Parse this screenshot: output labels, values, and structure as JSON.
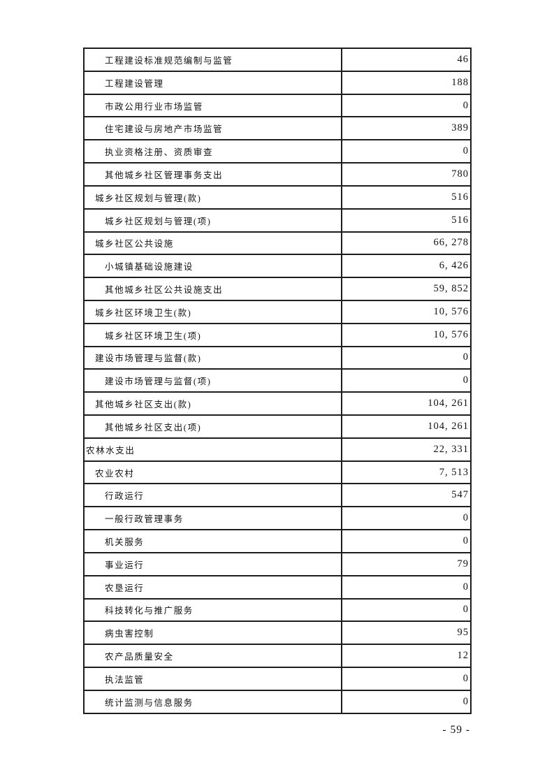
{
  "page": {
    "number": "- 59 -"
  },
  "colors": {
    "background": "#ffffff",
    "border": "#1d1d1d",
    "text": "#111111"
  },
  "table": {
    "rows": [
      {
        "label": "工程建设标准规范编制与监管",
        "value": "46",
        "indent": 2
      },
      {
        "label": "工程建设管理",
        "value": "188",
        "indent": 2
      },
      {
        "label": "市政公用行业市场监管",
        "value": "0",
        "indent": 2
      },
      {
        "label": "住宅建设与房地产市场监管",
        "value": "389",
        "indent": 2
      },
      {
        "label": "执业资格注册、资质审查",
        "value": "0",
        "indent": 2
      },
      {
        "label": "其他城乡社区管理事务支出",
        "value": "780",
        "indent": 2
      },
      {
        "label": "城乡社区规划与管理(款)",
        "value": "516",
        "indent": 1
      },
      {
        "label": "城乡社区规划与管理(项)",
        "value": "516",
        "indent": 2
      },
      {
        "label": "城乡社区公共设施",
        "value": "66, 278",
        "indent": 1
      },
      {
        "label": "小城镇基础设施建设",
        "value": "6, 426",
        "indent": 2
      },
      {
        "label": "其他城乡社区公共设施支出",
        "value": "59, 852",
        "indent": 2
      },
      {
        "label": "城乡社区环境卫生(款)",
        "value": "10, 576",
        "indent": 1
      },
      {
        "label": "城乡社区环境卫生(项)",
        "value": "10, 576",
        "indent": 2
      },
      {
        "label": "建设市场管理与监督(款)",
        "value": "0",
        "indent": 1
      },
      {
        "label": "建设市场管理与监督(项)",
        "value": "0",
        "indent": 2
      },
      {
        "label": "其他城乡社区支出(款)",
        "value": "104, 261",
        "indent": 1
      },
      {
        "label": "其他城乡社区支出(项)",
        "value": "104, 261",
        "indent": 2
      },
      {
        "label": "农林水支出",
        "value": "22, 331",
        "indent": 0
      },
      {
        "label": "农业农村",
        "value": "7, 513",
        "indent": 1
      },
      {
        "label": "行政运行",
        "value": "547",
        "indent": 2
      },
      {
        "label": "一般行政管理事务",
        "value": "0",
        "indent": 2
      },
      {
        "label": "机关服务",
        "value": "0",
        "indent": 2
      },
      {
        "label": "事业运行",
        "value": "79",
        "indent": 2
      },
      {
        "label": "农垦运行",
        "value": "0",
        "indent": 2
      },
      {
        "label": "科技转化与推广服务",
        "value": "0",
        "indent": 2
      },
      {
        "label": "病虫害控制",
        "value": "95",
        "indent": 2
      },
      {
        "label": "农产品质量安全",
        "value": "12",
        "indent": 2
      },
      {
        "label": "执法监管",
        "value": "0",
        "indent": 2
      },
      {
        "label": "统计监测与信息服务",
        "value": "0",
        "indent": 2
      }
    ]
  }
}
